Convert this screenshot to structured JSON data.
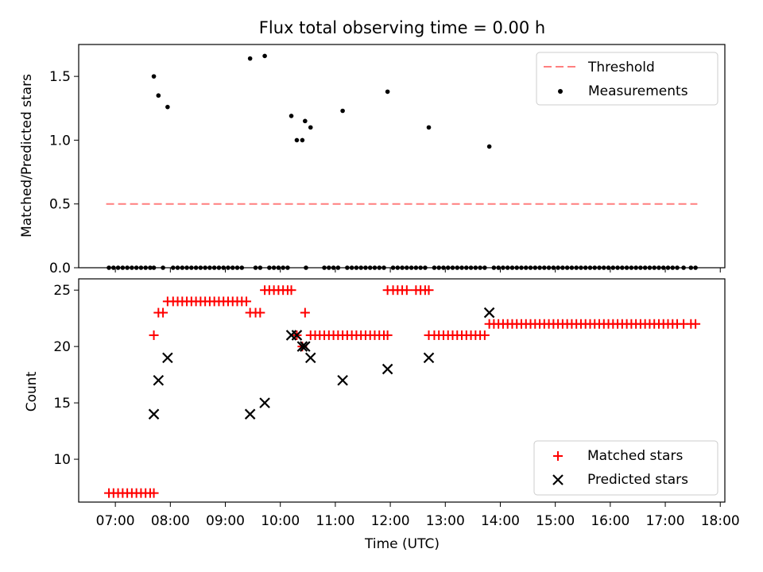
{
  "chart_data": [
    {
      "type": "scatter",
      "title": "Flux total observing time = 0.00 h",
      "xlabel": "",
      "ylabel": "Matched/Predicted stars",
      "ylim": [
        0,
        1.75
      ],
      "yticks": [
        "0.0",
        "0.5",
        "1.0",
        "1.5"
      ],
      "ytick_values": [
        0,
        0.5,
        1.0,
        1.5
      ],
      "legend_position": "top-right",
      "threshold": {
        "name": "Threshold",
        "value": 0.5,
        "x_start": "06:50",
        "x_end": "17:35",
        "color": "#ff7f7f"
      },
      "measurements": {
        "name": "Measurements",
        "color": "#000000",
        "points": [
          {
            "x": "07:42",
            "y": 1.5
          },
          {
            "x": "07:47",
            "y": 1.35
          },
          {
            "x": "07:57",
            "y": 1.26
          },
          {
            "x": "09:27",
            "y": 1.64
          },
          {
            "x": "09:43",
            "y": 1.66
          },
          {
            "x": "10:12",
            "y": 1.19
          },
          {
            "x": "10:18",
            "y": 1.0
          },
          {
            "x": "10:24",
            "y": 1.0
          },
          {
            "x": "10:27",
            "y": 1.15
          },
          {
            "x": "10:33",
            "y": 1.1
          },
          {
            "x": "11:08",
            "y": 1.23
          },
          {
            "x": "11:57",
            "y": 1.38
          },
          {
            "x": "12:42",
            "y": 1.1
          },
          {
            "x": "13:48",
            "y": 0.95
          }
        ],
        "zero_points": [
          "06:53",
          "06:58",
          "07:03",
          "07:08",
          "07:13",
          "07:18",
          "07:23",
          "07:28",
          "07:33",
          "07:38",
          "07:42",
          "07:52",
          "08:03",
          "08:08",
          "08:13",
          "08:18",
          "08:23",
          "08:28",
          "08:33",
          "08:38",
          "08:43",
          "08:48",
          "08:53",
          "08:58",
          "09:03",
          "09:08",
          "09:13",
          "09:18",
          "09:33",
          "09:38",
          "09:48",
          "09:53",
          "09:58",
          "10:03",
          "10:08",
          "10:28",
          "10:48",
          "10:53",
          "10:58",
          "11:03",
          "11:13",
          "11:18",
          "11:23",
          "11:28",
          "11:33",
          "11:38",
          "11:43",
          "11:48",
          "11:53",
          "12:03",
          "12:08",
          "12:13",
          "12:18",
          "12:23",
          "12:28",
          "12:33",
          "12:38",
          "12:48",
          "12:53",
          "12:58",
          "13:03",
          "13:08",
          "13:13",
          "13:18",
          "13:23",
          "13:28",
          "13:33",
          "13:38",
          "13:43",
          "13:53",
          "13:58",
          "14:03",
          "14:08",
          "14:13",
          "14:18",
          "14:23",
          "14:28",
          "14:33",
          "14:38",
          "14:43",
          "14:48",
          "14:53",
          "14:58",
          "15:03",
          "15:08",
          "15:13",
          "15:18",
          "15:23",
          "15:28",
          "15:33",
          "15:38",
          "15:43",
          "15:48",
          "15:53",
          "15:58",
          "16:03",
          "16:08",
          "16:13",
          "16:18",
          "16:23",
          "16:28",
          "16:33",
          "16:38",
          "16:43",
          "16:48",
          "16:53",
          "16:58",
          "17:03",
          "17:08",
          "17:13",
          "17:20",
          "17:28",
          "17:33"
        ]
      }
    },
    {
      "type": "scatter",
      "title": "",
      "xlabel": "Time (UTC)",
      "ylabel": "Count",
      "ylim": [
        6.2,
        26
      ],
      "yticks": [
        "10",
        "15",
        "20",
        "25"
      ],
      "ytick_values": [
        10,
        15,
        20,
        25
      ],
      "xlim": [
        "06:20",
        "18:05"
      ],
      "xticks": [
        "07:00",
        "08:00",
        "09:00",
        "10:00",
        "11:00",
        "12:00",
        "13:00",
        "14:00",
        "15:00",
        "16:00",
        "17:00",
        "18:00"
      ],
      "legend_position": "bottom-right",
      "series": [
        {
          "name": "Matched stars",
          "marker": "plus",
          "color": "#ff0000",
          "segments": [
            {
              "y": 7,
              "times": [
                "06:53",
                "06:58",
                "07:03",
                "07:08",
                "07:13",
                "07:18",
                "07:23",
                "07:28",
                "07:33",
                "07:38",
                "07:42"
              ]
            },
            {
              "y": 21,
              "times": [
                "07:42"
              ]
            },
            {
              "y": 23,
              "times": [
                "07:47",
                "07:52"
              ]
            },
            {
              "y": 24,
              "times": [
                "07:57",
                "08:03",
                "08:08",
                "08:13",
                "08:18",
                "08:23",
                "08:28",
                "08:33",
                "08:38",
                "08:43",
                "08:48",
                "08:53",
                "08:58",
                "09:03",
                "09:08",
                "09:13",
                "09:18",
                "09:23"
              ]
            },
            {
              "y": 23,
              "times": [
                "09:27",
                "09:33",
                "09:38"
              ]
            },
            {
              "y": 25,
              "times": [
                "09:43",
                "09:48",
                "09:53",
                "09:58",
                "10:03",
                "10:08",
                "10:12"
              ]
            },
            {
              "y": 21,
              "times": [
                "10:18"
              ]
            },
            {
              "y": 20,
              "times": [
                "10:24"
              ]
            },
            {
              "y": 23,
              "times": [
                "10:27"
              ]
            },
            {
              "y": 21,
              "times": [
                "10:33",
                "10:38",
                "10:43",
                "10:48",
                "10:53",
                "10:58",
                "11:03",
                "11:08",
                "11:13",
                "11:18",
                "11:23",
                "11:28",
                "11:33",
                "11:38",
                "11:43",
                "11:48",
                "11:53",
                "11:57"
              ]
            },
            {
              "y": 25,
              "times": [
                "11:57",
                "12:03",
                "12:08",
                "12:13",
                "12:18",
                "12:28",
                "12:33",
                "12:38",
                "12:42"
              ]
            },
            {
              "y": 21,
              "times": [
                "12:42",
                "12:48",
                "12:53",
                "12:58",
                "13:03",
                "13:08",
                "13:13",
                "13:18",
                "13:23",
                "13:28",
                "13:33",
                "13:38",
                "13:43"
              ]
            },
            {
              "y": 22,
              "times": [
                "13:48",
                "13:53",
                "13:58",
                "14:03",
                "14:08",
                "14:13",
                "14:18",
                "14:23",
                "14:28",
                "14:33",
                "14:38",
                "14:43",
                "14:48",
                "14:53",
                "14:58",
                "15:03",
                "15:08",
                "15:13",
                "15:18",
                "15:23",
                "15:28",
                "15:33",
                "15:38",
                "15:43",
                "15:48",
                "15:53",
                "15:58",
                "16:03",
                "16:08",
                "16:13",
                "16:18",
                "16:23",
                "16:28",
                "16:33",
                "16:38",
                "16:43",
                "16:48",
                "16:53",
                "16:58",
                "17:03",
                "17:08",
                "17:13",
                "17:20",
                "17:28",
                "17:33"
              ]
            }
          ]
        },
        {
          "name": "Predicted stars",
          "marker": "x",
          "color": "#000000",
          "points": [
            {
              "x": "07:42",
              "y": 14
            },
            {
              "x": "07:47",
              "y": 17
            },
            {
              "x": "07:57",
              "y": 19
            },
            {
              "x": "09:27",
              "y": 14
            },
            {
              "x": "09:43",
              "y": 15
            },
            {
              "x": "10:12",
              "y": 21
            },
            {
              "x": "10:18",
              "y": 21
            },
            {
              "x": "10:24",
              "y": 20
            },
            {
              "x": "10:27",
              "y": 20
            },
            {
              "x": "10:33",
              "y": 19
            },
            {
              "x": "11:08",
              "y": 17
            },
            {
              "x": "11:57",
              "y": 18
            },
            {
              "x": "12:42",
              "y": 19
            },
            {
              "x": "13:48",
              "y": 23
            }
          ]
        }
      ]
    }
  ]
}
